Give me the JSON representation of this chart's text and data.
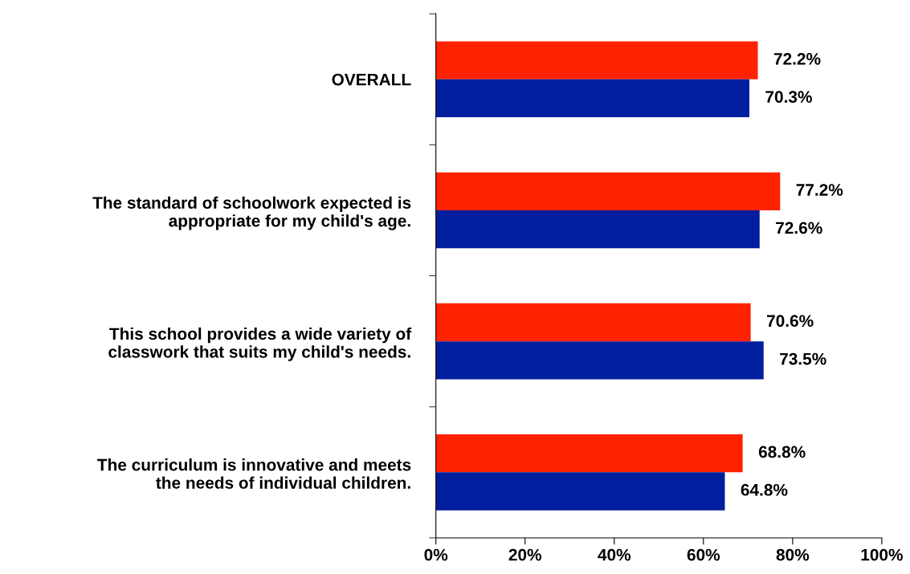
{
  "chart_data": {
    "type": "bar",
    "orientation": "horizontal",
    "categories": [
      "OVERALL",
      "The standard of schoolwork expected is\nappropriate for my child's age.",
      "This school provides a wide variety of\nclasswork that suits my child's needs.",
      "The curriculum is innovative and meets\nthe needs of individual children."
    ],
    "series": [
      {
        "color": "#ff2200",
        "values": [
          72.2,
          77.2,
          70.6,
          68.8
        ],
        "value_labels": [
          "72.2%",
          "77.2%",
          "70.6%",
          "68.8%"
        ]
      },
      {
        "color": "#001e9e",
        "values": [
          70.3,
          72.6,
          73.5,
          64.8
        ],
        "value_labels": [
          "70.3%",
          "72.6%",
          "73.5%",
          "64.8%"
        ]
      }
    ],
    "xlim": [
      0,
      100
    ],
    "xticks": [
      {
        "value": 0,
        "label": "0%"
      },
      {
        "value": 20,
        "label": "20%"
      },
      {
        "value": 40,
        "label": "40%"
      },
      {
        "value": 60,
        "label": "60%"
      },
      {
        "value": 80,
        "label": "80%"
      },
      {
        "value": 100,
        "label": "100%"
      }
    ],
    "grid": false,
    "legend": false
  }
}
